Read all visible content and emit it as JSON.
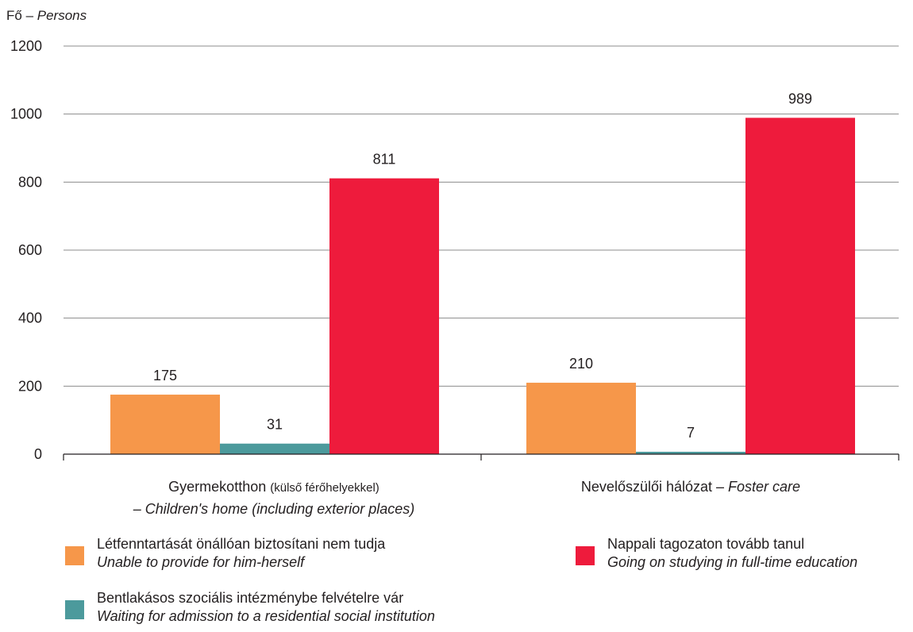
{
  "chart_data": {
    "type": "bar",
    "ylabel": {
      "hu": "Fő",
      "sep": " – ",
      "en": "Persons"
    },
    "ylim": [
      0,
      1200
    ],
    "yticks": [
      "0",
      "200",
      "400",
      "600",
      "800",
      "1000",
      "1200"
    ],
    "grid": true,
    "categories": [
      {
        "hu": "Gyermekotthon",
        "hu_note": "(külső férőhelyekkel)",
        "en": "– Children's home  (including exterior places)"
      },
      {
        "hu": "Nevelőszülői hálózat – ",
        "en": "Foster care"
      }
    ],
    "series": [
      {
        "name_hu": "Létfenntartását önállóan biztosítani nem tudja",
        "name_en": "Unable to provide for him-herself",
        "color": "#f6974a",
        "values": [
          175,
          210
        ],
        "labels": [
          "175",
          "210"
        ]
      },
      {
        "name_hu": "Bentlakásos szociális intézménybe felvételre vár",
        "name_en": "Waiting for admission to a residential social institution",
        "color": "#4c9a9c",
        "values": [
          31,
          7
        ],
        "labels": [
          "31",
          "7"
        ]
      },
      {
        "name_hu": "Nappali tagozaton tovább tanul",
        "name_en": "Going on studying in full-time education",
        "color": "#ee1b3c",
        "values": [
          811,
          989
        ],
        "labels": [
          "811",
          "989"
        ]
      }
    ],
    "legend_position": "bottom"
  }
}
